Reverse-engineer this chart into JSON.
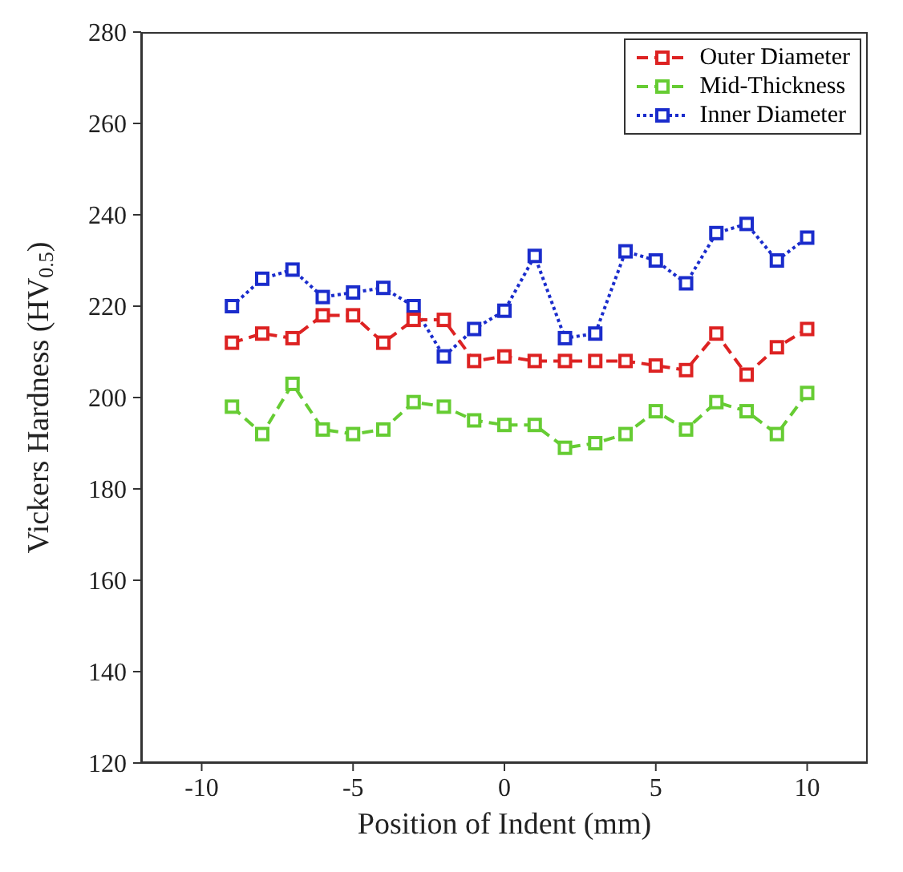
{
  "chart_data": {
    "type": "line",
    "xlabel": "Position of Indent (mm)",
    "ylabel": "Vickers Hardness (HV$_{0.5}$)",
    "x": [
      -9,
      -8,
      -7,
      -6,
      -5,
      -4,
      -3,
      -2,
      -1,
      0,
      1,
      2,
      3,
      4,
      5,
      6,
      7,
      8,
      9,
      10
    ],
    "series": [
      {
        "name": "Outer Diameter",
        "color": "#dd2222",
        "line_style": "dashed",
        "values": [
          212,
          214,
          213,
          218,
          218,
          212,
          217,
          217,
          208,
          209,
          208,
          208,
          208,
          208,
          207,
          206,
          214,
          205,
          211,
          215
        ]
      },
      {
        "name": "Mid-Thickness",
        "color": "#66cc33",
        "line_style": "dashed",
        "values": [
          198,
          192,
          203,
          193,
          192,
          193,
          199,
          198,
          195,
          194,
          194,
          189,
          190,
          192,
          197,
          193,
          199,
          197,
          192,
          201
        ]
      },
      {
        "name": "Inner Diameter",
        "color": "#1a2ccc",
        "line_style": "dotted",
        "values": [
          220,
          226,
          228,
          222,
          223,
          224,
          220,
          209,
          215,
          219,
          231,
          213,
          214,
          232,
          230,
          225,
          236,
          238,
          230,
          235
        ]
      }
    ],
    "xlim": [
      -12,
      12
    ],
    "xticks": [
      -10,
      -5,
      0,
      5,
      10
    ],
    "ylim": [
      120,
      280
    ],
    "yticks": [
      120,
      140,
      160,
      180,
      200,
      220,
      240,
      260,
      280
    ],
    "grid": false,
    "legend": "top right",
    "marker": "square"
  }
}
